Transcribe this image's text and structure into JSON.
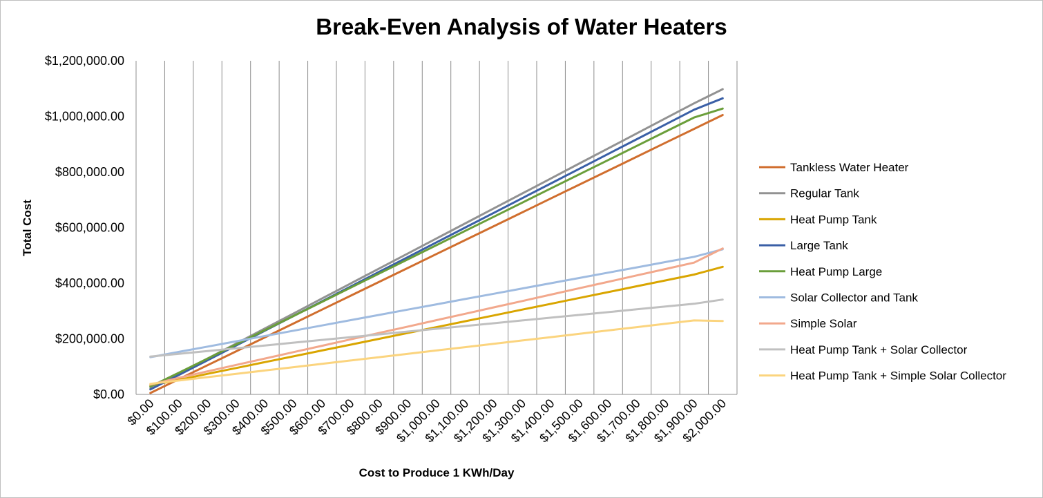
{
  "chart_data": {
    "type": "line",
    "title": "Break-Even Analysis of Water Heaters",
    "xlabel": "Cost to Produce 1 KWh/Day",
    "ylabel": "Total Cost",
    "categories": [
      "$0.00",
      "$100.00",
      "$200.00",
      "$300.00",
      "$400.00",
      "$500.00",
      "$600.00",
      "$700.00",
      "$800.00",
      "$900.00",
      "$1,000.00",
      "$1,100.00",
      "$1,200.00",
      "$1,300.00",
      "$1,400.00",
      "$1,500.00",
      "$1,600.00",
      "$1,700.00",
      "$1,800.00",
      "$1,900.00",
      "$2,000.00"
    ],
    "x": [
      0,
      100,
      200,
      300,
      400,
      500,
      600,
      700,
      800,
      900,
      1000,
      1100,
      1200,
      1300,
      1400,
      1500,
      1600,
      1700,
      1800,
      1900,
      2000
    ],
    "y_ticks": [
      "$0.00",
      "$200,000.00",
      "$400,000.00",
      "$600,000.00",
      "$800,000.00",
      "$1,000,000.00",
      "$1,200,000.00"
    ],
    "ylim": [
      0,
      1200000
    ],
    "grid": "vertical",
    "legend_position": "right",
    "series": [
      {
        "name": "Tankless Water Heater",
        "color": "#D06E2E",
        "values": [
          5000,
          55000,
          105000,
          155000,
          205000,
          255000,
          305000,
          355000,
          405000,
          455000,
          505000,
          555000,
          605000,
          655000,
          705000,
          755000,
          805000,
          855000,
          905000,
          955000,
          1005000
        ]
      },
      {
        "name": "Regular Tank",
        "color": "#929292",
        "values": [
          22000,
          75000,
          129000,
          183000,
          237000,
          291000,
          345000,
          399000,
          453000,
          507000,
          561000,
          615000,
          669000,
          723000,
          777000,
          831000,
          885000,
          939000,
          993000,
          1047000,
          1098000
        ]
      },
      {
        "name": "Heat Pump Tank",
        "color": "#D9A500",
        "values": [
          32000,
          52000,
          74000,
          95000,
          116000,
          137000,
          158000,
          179000,
          200000,
          221000,
          242000,
          263000,
          284000,
          305000,
          326000,
          347000,
          368000,
          389000,
          410000,
          431000,
          459000
        ]
      },
      {
        "name": "Large Tank",
        "color": "#3A5FA6",
        "values": [
          18000,
          70000,
          123000,
          176000,
          229000,
          282000,
          335000,
          388000,
          441000,
          494000,
          547000,
          600000,
          653000,
          706000,
          759000,
          812000,
          865000,
          918000,
          971000,
          1024000,
          1065000
        ]
      },
      {
        "name": "Heat Pump Large",
        "color": "#6A9E3A",
        "values": [
          28000,
          78000,
          129000,
          180000,
          231000,
          282000,
          333000,
          384000,
          435000,
          486000,
          537000,
          588000,
          639000,
          690000,
          741000,
          792000,
          843000,
          894000,
          945000,
          996000,
          1028000
        ]
      },
      {
        "name": "Solar Collector and Tank",
        "color": "#9FBBE0",
        "values": [
          134000,
          153000,
          172000,
          191000,
          210000,
          229000,
          248000,
          267000,
          286000,
          305000,
          324000,
          343000,
          362000,
          381000,
          400000,
          419000,
          438000,
          457000,
          476000,
          495000,
          522000
        ]
      },
      {
        "name": "Simple Solar",
        "color": "#F2A88C",
        "values": [
          35000,
          60000,
          83000,
          106000,
          129000,
          152000,
          175000,
          198000,
          221000,
          244000,
          267000,
          290000,
          313000,
          336000,
          359000,
          382000,
          405000,
          428000,
          451000,
          474000,
          525000
        ]
      },
      {
        "name": "Heat Pump Tank + Solar Collector",
        "color": "#C0C0C0",
        "values": [
          136000,
          146000,
          156000,
          166000,
          176000,
          186000,
          196000,
          206000,
          216000,
          226000,
          236000,
          246000,
          256000,
          266000,
          276000,
          286000,
          296000,
          306000,
          316000,
          326000,
          341000
        ]
      },
      {
        "name": "Heat Pump Tank + Simple Solar Collector",
        "color": "#FBD47E",
        "values": [
          38000,
          50000,
          62000,
          74000,
          86000,
          98000,
          110000,
          122000,
          134000,
          146000,
          158000,
          170000,
          182000,
          194000,
          206000,
          218000,
          230000,
          242000,
          254000,
          266000,
          264000
        ]
      }
    ]
  }
}
